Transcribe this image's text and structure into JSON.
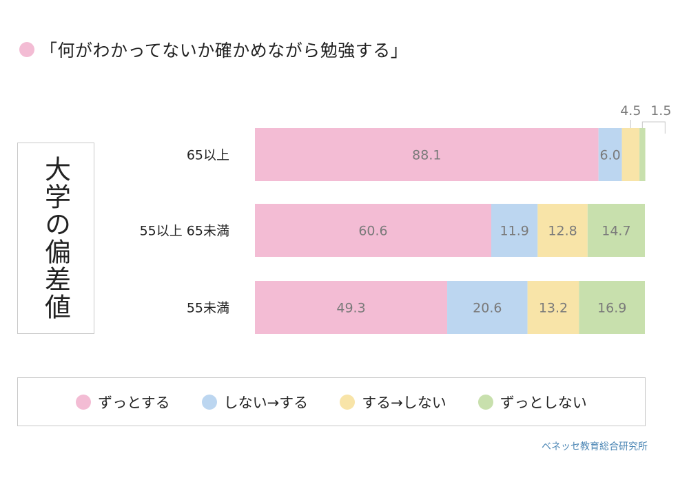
{
  "title": "「何がわかってないか確かめながら勉強する」",
  "axis_title": "大学の偏差値",
  "source": "ベネッセ教育総合研究所",
  "colors": {
    "title_dot": "#f3bcd4",
    "zutto_suru": "#f3bcd4",
    "shinai_suru": "#bcd6f0",
    "suru_shinai": "#f8e4a8",
    "zutto_shinai": "#c8e0ad"
  },
  "chart_data": {
    "type": "bar",
    "orientation": "horizontal",
    "stacked": true,
    "categories": [
      "65以上",
      "55以上 65未満",
      "55未満"
    ],
    "series": [
      {
        "name": "ずっとする",
        "values": [
          88.1,
          60.6,
          49.3
        ],
        "color": "#f3bcd4"
      },
      {
        "name": "しない→する",
        "values": [
          6.0,
          11.9,
          20.6
        ],
        "color": "#bcd6f0"
      },
      {
        "name": "する→しない",
        "values": [
          4.5,
          12.8,
          13.2
        ],
        "color": "#f8e4a8"
      },
      {
        "name": "ずっとしない",
        "values": [
          1.5,
          14.7,
          16.9
        ],
        "color": "#c8e0ad"
      }
    ],
    "xlim": [
      0,
      100
    ],
    "grid": false,
    "legend_position": "bottom"
  }
}
